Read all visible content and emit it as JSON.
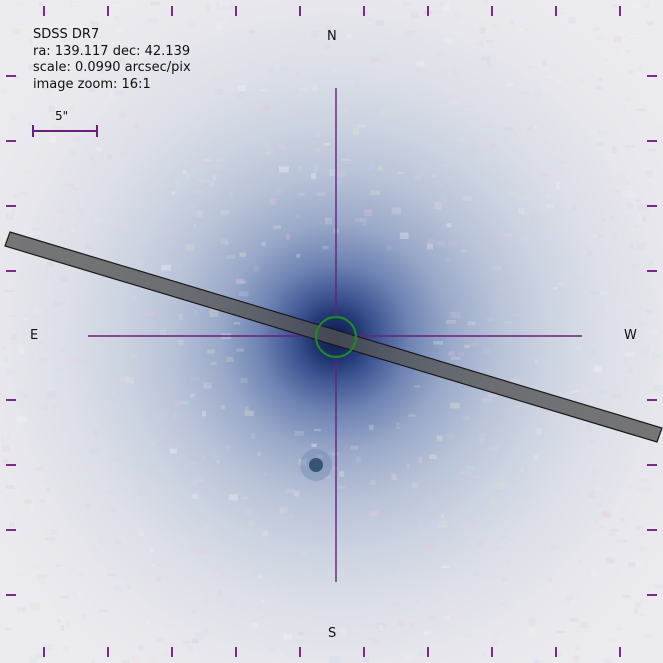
{
  "survey": "SDSS DR7",
  "coords_text": "ra: 139.117 dec: 42.139",
  "scale_text": "scale: 0.0990 arcsec/pix",
  "zoom_text": "image zoom: 16:1",
  "scale_bar_label": "5\"",
  "compass": {
    "north": "N",
    "south": "S",
    "east": "E",
    "west": "W"
  },
  "colors": {
    "crosshair": "#6a1f7a",
    "target_circle": "#1f8a1f",
    "slit_fill": "#555555",
    "galaxy_core": "#0c1a45"
  }
}
